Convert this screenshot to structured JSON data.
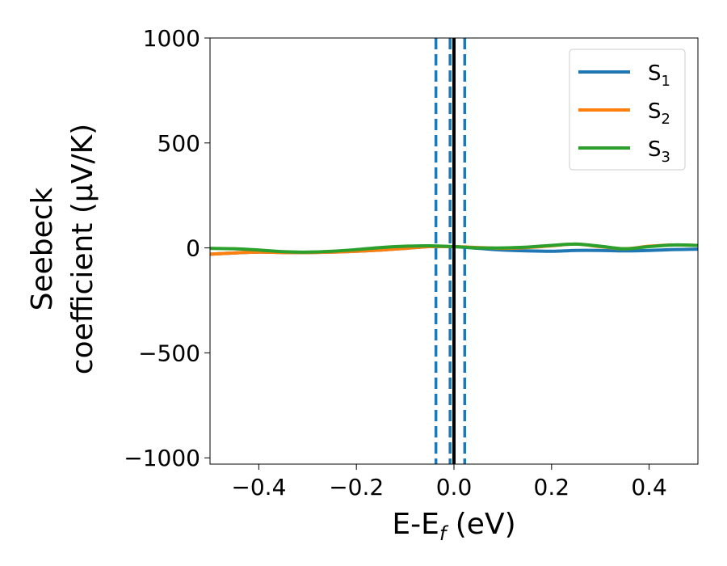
{
  "chart_data": {
    "type": "line",
    "title": "",
    "xlabel": {
      "main": "E-E",
      "sub": "f",
      "suffix": " (eV)"
    },
    "ylabel": {
      "line1": "Seebeck",
      "line2": "coefficient  (μV/K)"
    },
    "xlim": [
      -0.5,
      0.5
    ],
    "ylim": [
      -1030,
      1000
    ],
    "x_ticks": [
      {
        "value": -0.4,
        "label": "−0.4"
      },
      {
        "value": -0.2,
        "label": "−0.2"
      },
      {
        "value": 0.0,
        "label": "0.0"
      },
      {
        "value": 0.2,
        "label": "0.2"
      },
      {
        "value": 0.4,
        "label": "0.4"
      }
    ],
    "y_ticks": [
      {
        "value": 1000,
        "label": "1000"
      },
      {
        "value": 500,
        "label": "500"
      },
      {
        "value": 0,
        "label": "0"
      },
      {
        "value": -500,
        "label": "−500"
      },
      {
        "value": -1000,
        "label": "−1000"
      }
    ],
    "grid": false,
    "legend_position": "top-right",
    "series": [
      {
        "name": "S1",
        "legend_main": "S",
        "legend_sub": "1",
        "color": "#1f77b4",
        "x": [
          -0.5,
          -0.45,
          -0.4,
          -0.35,
          -0.3,
          -0.25,
          -0.2,
          -0.15,
          -0.1,
          -0.05,
          0.0,
          0.05,
          0.1,
          0.15,
          0.2,
          0.25,
          0.3,
          0.35,
          0.4,
          0.45,
          0.5
        ],
        "y": [
          -30,
          -24,
          -20,
          -22,
          -22,
          -20,
          -16,
          -10,
          -2,
          6,
          6,
          -2,
          -10,
          -14,
          -16,
          -12,
          -12,
          -14,
          -12,
          -8,
          -6
        ]
      },
      {
        "name": "S2",
        "legend_main": "S",
        "legend_sub": "2",
        "color": "#ff7f0e",
        "x": [
          -0.5,
          -0.45,
          -0.4,
          -0.35,
          -0.3,
          -0.25,
          -0.2,
          -0.15,
          -0.1,
          -0.05,
          0.0,
          0.05,
          0.1,
          0.15,
          0.2,
          0.25,
          0.3,
          0.35,
          0.4,
          0.45,
          0.5
        ],
        "y": [
          -30,
          -24,
          -20,
          -22,
          -22,
          -20,
          -16,
          -10,
          -2,
          6,
          6,
          2,
          -2,
          2,
          10,
          18,
          6,
          -4,
          8,
          14,
          12
        ]
      },
      {
        "name": "S3",
        "legend_main": "S",
        "legend_sub": "3",
        "color": "#2ca02c",
        "x": [
          -0.5,
          -0.45,
          -0.4,
          -0.35,
          -0.3,
          -0.25,
          -0.2,
          -0.15,
          -0.1,
          -0.05,
          0.0,
          0.05,
          0.1,
          0.15,
          0.2,
          0.25,
          0.3,
          0.35,
          0.4,
          0.45,
          0.5
        ],
        "y": [
          -2,
          -4,
          -10,
          -18,
          -20,
          -16,
          -8,
          2,
          8,
          10,
          6,
          0,
          0,
          4,
          12,
          18,
          8,
          -4,
          6,
          14,
          12
        ]
      }
    ],
    "vlines": [
      {
        "x": -0.037,
        "style": "dashed",
        "color": "#1f77b4"
      },
      {
        "x": -0.008,
        "style": "dashed",
        "color": "#1f77b4"
      },
      {
        "x": 0.0,
        "style": "solid",
        "color": "#000000"
      },
      {
        "x": 0.022,
        "style": "dashed",
        "color": "#1f77b4"
      }
    ]
  }
}
